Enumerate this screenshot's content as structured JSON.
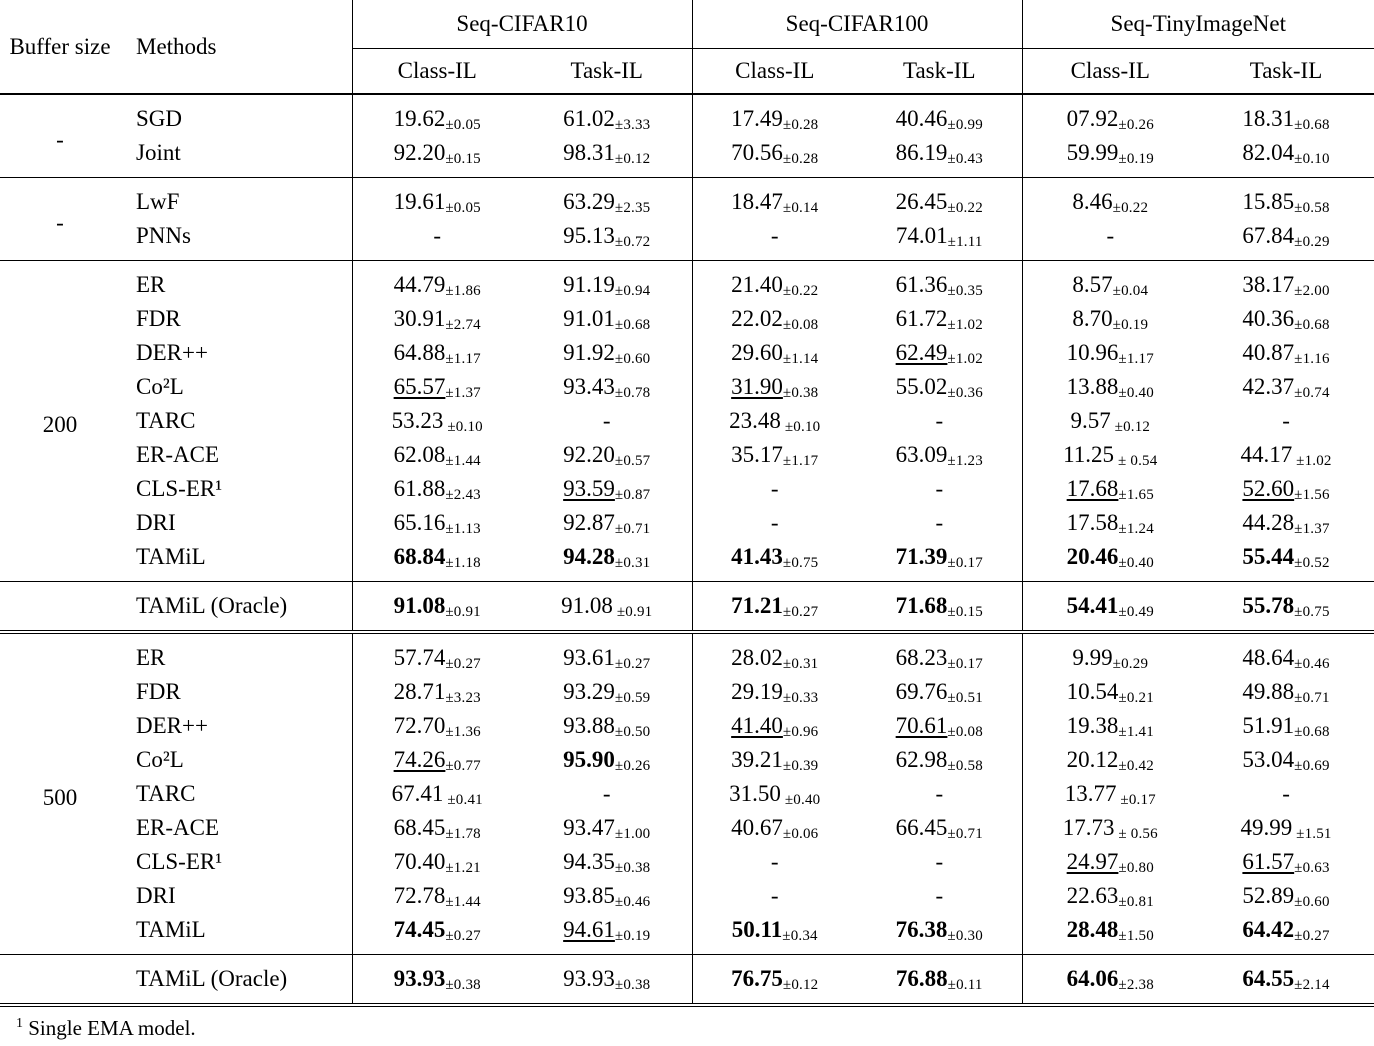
{
  "table": {
    "header": {
      "buffer_size": "Buffer size",
      "methods": "Methods",
      "datasets": [
        "Seq-CIFAR10",
        "Seq-CIFAR100",
        "Seq-TinyImageNet"
      ],
      "subcolumns": [
        "Class-IL",
        "Task-IL"
      ]
    },
    "groups": [
      {
        "buffer": "-",
        "rows": [
          {
            "method": "SGD",
            "cells": [
              {
                "v": "19.62",
                "pm": "±0.05"
              },
              {
                "v": "61.02",
                "pm": "±3.33"
              },
              {
                "v": "17.49",
                "pm": "±0.28"
              },
              {
                "v": "40.46",
                "pm": "±0.99"
              },
              {
                "v": "07.92",
                "pm": "±0.26"
              },
              {
                "v": "18.31",
                "pm": "±0.68"
              }
            ]
          },
          {
            "method": "Joint",
            "cells": [
              {
                "v": "92.20",
                "pm": "±0.15"
              },
              {
                "v": "98.31",
                "pm": "±0.12"
              },
              {
                "v": "70.56",
                "pm": "±0.28"
              },
              {
                "v": "86.19",
                "pm": "±0.43"
              },
              {
                "v": "59.99",
                "pm": "±0.19"
              },
              {
                "v": "82.04",
                "pm": "±0.10"
              }
            ]
          }
        ]
      },
      {
        "buffer": "-",
        "rows": [
          {
            "method": "LwF",
            "cells": [
              {
                "v": "19.61",
                "pm": "±0.05"
              },
              {
                "v": "63.29",
                "pm": "±2.35"
              },
              {
                "v": "18.47",
                "pm": "±0.14"
              },
              {
                "v": "26.45",
                "pm": "±0.22"
              },
              {
                "v": "8.46",
                "pm": "±0.22"
              },
              {
                "v": "15.85",
                "pm": "±0.58"
              }
            ]
          },
          {
            "method": "PNNs",
            "cells": [
              {
                "v": "-"
              },
              {
                "v": "95.13",
                "pm": "±0.72"
              },
              {
                "v": "-"
              },
              {
                "v": "74.01",
                "pm": "±1.11"
              },
              {
                "v": "-"
              },
              {
                "v": "67.84",
                "pm": "±0.29"
              }
            ]
          }
        ]
      },
      {
        "buffer": "200",
        "rows": [
          {
            "method": "ER",
            "cells": [
              {
                "v": "44.79",
                "pm": "±1.86"
              },
              {
                "v": "91.19",
                "pm": "±0.94"
              },
              {
                "v": "21.40",
                "pm": "±0.22"
              },
              {
                "v": "61.36",
                "pm": "±0.35"
              },
              {
                "v": "8.57",
                "pm": "±0.04"
              },
              {
                "v": "38.17",
                "pm": "±2.00"
              }
            ]
          },
          {
            "method": "FDR",
            "cells": [
              {
                "v": "30.91",
                "pm": "±2.74"
              },
              {
                "v": "91.01",
                "pm": "±0.68"
              },
              {
                "v": "22.02",
                "pm": "±0.08"
              },
              {
                "v": "61.72",
                "pm": "±1.02"
              },
              {
                "v": "8.70",
                "pm": "±0.19"
              },
              {
                "v": "40.36",
                "pm": "±0.68"
              }
            ]
          },
          {
            "method": "DER++",
            "cells": [
              {
                "v": "64.88",
                "pm": "±1.17"
              },
              {
                "v": "91.92",
                "pm": "±0.60"
              },
              {
                "v": "29.60",
                "pm": "±1.14"
              },
              {
                "v": "62.49",
                "pm": "±1.02",
                "u": true
              },
              {
                "v": "10.96",
                "pm": "±1.17"
              },
              {
                "v": "40.87",
                "pm": "±1.16"
              }
            ]
          },
          {
            "method": "Co²L",
            "cells": [
              {
                "v": "65.57",
                "pm": "±1.37",
                "u": true
              },
              {
                "v": "93.43",
                "pm": "±0.78"
              },
              {
                "v": "31.90",
                "pm": "±0.38",
                "u": true
              },
              {
                "v": "55.02",
                "pm": "±0.36"
              },
              {
                "v": "13.88",
                "pm": "±0.40"
              },
              {
                "v": "42.37",
                "pm": "±0.74"
              }
            ]
          },
          {
            "method": "TARC",
            "cells": [
              {
                "v": "53.23",
                "pm": " ±0.10"
              },
              {
                "v": "-"
              },
              {
                "v": "23.48",
                "pm": " ±0.10"
              },
              {
                "v": "-"
              },
              {
                "v": "9.57",
                "pm": " ±0.12"
              },
              {
                "v": "-"
              }
            ]
          },
          {
            "method": "ER-ACE",
            "cells": [
              {
                "v": "62.08",
                "pm": "±1.44"
              },
              {
                "v": "92.20",
                "pm": "±0.57"
              },
              {
                "v": "35.17",
                "pm": "±1.17"
              },
              {
                "v": "63.09",
                "pm": "±1.23"
              },
              {
                "v": "11.25",
                "pm": " ± 0.54"
              },
              {
                "v": "44.17",
                "pm": " ±1.02"
              }
            ]
          },
          {
            "method": "CLS-ER¹",
            "cells": [
              {
                "v": "61.88",
                "pm": "±2.43"
              },
              {
                "v": "93.59",
                "pm": "±0.87",
                "u": true
              },
              {
                "v": "-"
              },
              {
                "v": "-"
              },
              {
                "v": "17.68",
                "pm": "±1.65",
                "u": true
              },
              {
                "v": "52.60",
                "pm": "±1.56",
                "u": true
              }
            ]
          },
          {
            "method": "DRI",
            "cells": [
              {
                "v": "65.16",
                "pm": "±1.13"
              },
              {
                "v": "92.87",
                "pm": "±0.71"
              },
              {
                "v": "-"
              },
              {
                "v": "-"
              },
              {
                "v": "17.58",
                "pm": "±1.24"
              },
              {
                "v": "44.28",
                "pm": "±1.37"
              }
            ]
          },
          {
            "method": "TAMiL",
            "cells": [
              {
                "v": "68.84",
                "pm": "±1.18",
                "b": true
              },
              {
                "v": "94.28",
                "pm": "±0.31",
                "b": true
              },
              {
                "v": "41.43",
                "pm": "±0.75",
                "b": true
              },
              {
                "v": "71.39",
                "pm": "±0.17",
                "b": true
              },
              {
                "v": "20.46",
                "pm": "±0.40",
                "b": true
              },
              {
                "v": "55.44",
                "pm": "±0.52",
                "b": true
              }
            ]
          }
        ]
      },
      {
        "buffer": "",
        "oracle": true,
        "rows": [
          {
            "method": "TAMiL (Oracle)",
            "cells": [
              {
                "v": "91.08",
                "pm": "±0.91",
                "b": true
              },
              {
                "v": "91.08",
                "pm": " ±0.91"
              },
              {
                "v": "71.21",
                "pm": "±0.27",
                "b": true
              },
              {
                "v": "71.68",
                "pm": "±0.15",
                "b": true
              },
              {
                "v": "54.41",
                "pm": "±0.49",
                "b": true
              },
              {
                "v": "55.78",
                "pm": "±0.75",
                "b": true
              }
            ]
          }
        ]
      },
      {
        "buffer": "500",
        "rows": [
          {
            "method": "ER",
            "cells": [
              {
                "v": "57.74",
                "pm": "±0.27"
              },
              {
                "v": "93.61",
                "pm": "±0.27"
              },
              {
                "v": "28.02",
                "pm": "±0.31"
              },
              {
                "v": "68.23",
                "pm": "±0.17"
              },
              {
                "v": "9.99",
                "pm": "±0.29"
              },
              {
                "v": "48.64",
                "pm": "±0.46"
              }
            ]
          },
          {
            "method": "FDR",
            "cells": [
              {
                "v": "28.71",
                "pm": "±3.23"
              },
              {
                "v": "93.29",
                "pm": "±0.59"
              },
              {
                "v": "29.19",
                "pm": "±0.33"
              },
              {
                "v": "69.76",
                "pm": "±0.51"
              },
              {
                "v": "10.54",
                "pm": "±0.21"
              },
              {
                "v": "49.88",
                "pm": "±0.71"
              }
            ]
          },
          {
            "method": "DER++",
            "cells": [
              {
                "v": "72.70",
                "pm": "±1.36"
              },
              {
                "v": "93.88",
                "pm": "±0.50"
              },
              {
                "v": "41.40",
                "pm": "±0.96",
                "u": true
              },
              {
                "v": "70.61",
                "pm": "±0.08",
                "u": true
              },
              {
                "v": "19.38",
                "pm": "±1.41"
              },
              {
                "v": "51.91",
                "pm": "±0.68"
              }
            ]
          },
          {
            "method": "Co²L",
            "cells": [
              {
                "v": "74.26",
                "pm": "±0.77",
                "u": true
              },
              {
                "v": "95.90",
                "pm": "±0.26",
                "b": true
              },
              {
                "v": "39.21",
                "pm": "±0.39"
              },
              {
                "v": "62.98",
                "pm": "±0.58"
              },
              {
                "v": "20.12",
                "pm": "±0.42"
              },
              {
                "v": "53.04",
                "pm": "±0.69"
              }
            ]
          },
          {
            "method": "TARC",
            "cells": [
              {
                "v": "67.41",
                "pm": " ±0.41"
              },
              {
                "v": "-"
              },
              {
                "v": "31.50",
                "pm": " ±0.40"
              },
              {
                "v": "-"
              },
              {
                "v": "13.77",
                "pm": " ±0.17"
              },
              {
                "v": "-"
              }
            ]
          },
          {
            "method": "ER-ACE",
            "cells": [
              {
                "v": "68.45",
                "pm": "±1.78"
              },
              {
                "v": "93.47",
                "pm": "±1.00"
              },
              {
                "v": "40.67",
                "pm": "±0.06"
              },
              {
                "v": "66.45",
                "pm": "±0.71"
              },
              {
                "v": "17.73",
                "pm": " ± 0.56"
              },
              {
                "v": "49.99",
                "pm": " ±1.51"
              }
            ]
          },
          {
            "method": "CLS-ER¹",
            "cells": [
              {
                "v": "70.40",
                "pm": "±1.21"
              },
              {
                "v": "94.35",
                "pm": "±0.38"
              },
              {
                "v": "-"
              },
              {
                "v": "-"
              },
              {
                "v": "24.97",
                "pm": "±0.80",
                "u": true
              },
              {
                "v": "61.57",
                "pm": "±0.63",
                "u": true
              }
            ]
          },
          {
            "method": "DRI",
            "cells": [
              {
                "v": "72.78",
                "pm": "±1.44"
              },
              {
                "v": "93.85",
                "pm": "±0.46"
              },
              {
                "v": "-"
              },
              {
                "v": "-"
              },
              {
                "v": "22.63",
                "pm": "±0.81"
              },
              {
                "v": "52.89",
                "pm": "±0.60"
              }
            ]
          },
          {
            "method": "TAMiL",
            "cells": [
              {
                "v": "74.45",
                "pm": "±0.27",
                "b": true
              },
              {
                "v": "94.61",
                "pm": "±0.19",
                "u": true
              },
              {
                "v": "50.11",
                "pm": "±0.34",
                "b": true
              },
              {
                "v": "76.38",
                "pm": "±0.30",
                "b": true
              },
              {
                "v": "28.48",
                "pm": "±1.50",
                "b": true
              },
              {
                "v": "64.42",
                "pm": "±0.27",
                "b": true
              }
            ]
          }
        ]
      },
      {
        "buffer": "",
        "oracle": true,
        "rows": [
          {
            "method": "TAMiL (Oracle)",
            "cells": [
              {
                "v": "93.93",
                "pm": "±0.38",
                "b": true
              },
              {
                "v": "93.93",
                "pm": "±0.38"
              },
              {
                "v": "76.75",
                "pm": "±0.12",
                "b": true
              },
              {
                "v": "76.88",
                "pm": "±0.11",
                "b": true
              },
              {
                "v": "64.06",
                "pm": "±2.38",
                "b": true
              },
              {
                "v": "64.55",
                "pm": "±2.14",
                "b": true
              }
            ]
          }
        ]
      }
    ],
    "footnote": {
      "marker": "1",
      "text": "Single EMA model."
    }
  }
}
